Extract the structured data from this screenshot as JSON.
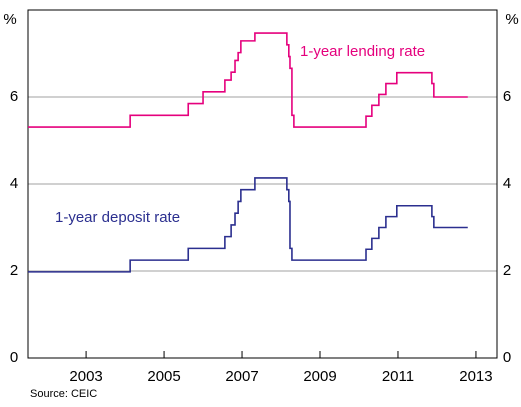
{
  "chart_data": {
    "type": "line",
    "step": "post",
    "y_unit_label": "%",
    "source": "Source: CEIC",
    "xlim": [
      2001.51,
      2013.54
    ],
    "xticks": [
      2003,
      2005,
      2007,
      2009,
      2011,
      2013
    ],
    "ylim": [
      0,
      8
    ],
    "yticks": [
      0,
      2,
      4,
      6
    ],
    "grid": true,
    "series": [
      {
        "name": "1-year lending rate",
        "color": "#e5007d",
        "x": [
          2001.51,
          2004.13,
          2005.62,
          2006.0,
          2006.56,
          2006.72,
          2006.82,
          2006.9,
          2006.97,
          2007.33,
          2008.15,
          2008.2,
          2008.23,
          2008.28,
          2008.33,
          2010.18,
          2010.33,
          2010.51,
          2010.69,
          2010.97,
          2011.87,
          2011.92,
          2012.79
        ],
        "values": [
          5.31,
          5.58,
          5.85,
          6.12,
          6.39,
          6.57,
          6.84,
          7.02,
          7.29,
          7.47,
          7.2,
          6.93,
          6.66,
          5.58,
          5.31,
          5.56,
          5.81,
          6.06,
          6.31,
          6.56,
          6.31,
          6.0,
          6.0
        ]
      },
      {
        "name": "1-year deposit rate",
        "color": "#2b2f8f",
        "x": [
          2001.51,
          2004.13,
          2005.62,
          2006.56,
          2006.72,
          2006.82,
          2006.9,
          2006.97,
          2007.33,
          2008.15,
          2008.2,
          2008.23,
          2008.28,
          2010.18,
          2010.33,
          2010.51,
          2010.69,
          2010.97,
          2011.87,
          2011.92,
          2012.79
        ],
        "values": [
          1.98,
          2.25,
          2.52,
          2.79,
          3.06,
          3.33,
          3.6,
          3.87,
          4.14,
          3.87,
          3.6,
          2.52,
          2.25,
          2.5,
          2.75,
          3.0,
          3.25,
          3.5,
          3.25,
          3.0,
          3.0
        ]
      }
    ]
  }
}
